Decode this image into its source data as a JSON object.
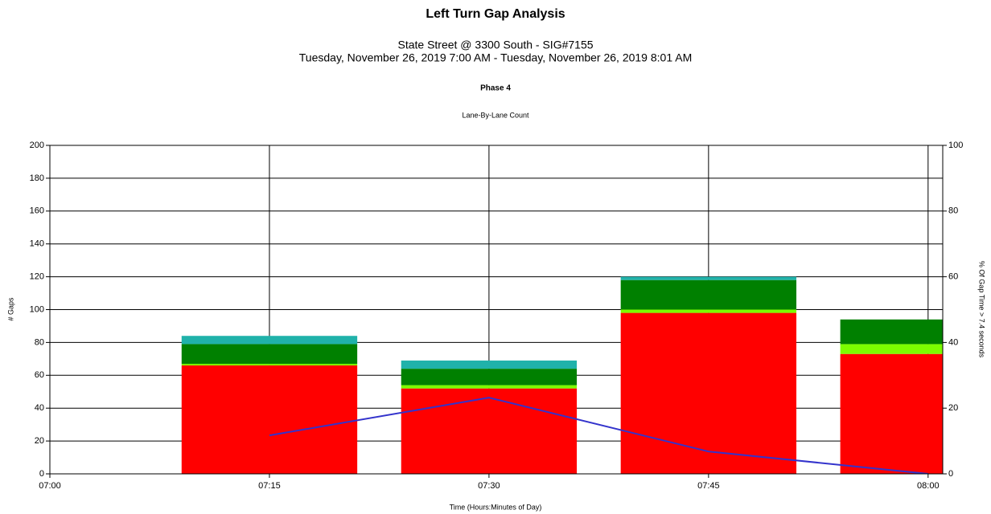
{
  "chart_data": {
    "type": "bar",
    "stacked": true,
    "title": "Left Turn Gap Analysis",
    "subtitle": [
      "State Street @ 3300 South - SIG#7155",
      "Tuesday, November 26, 2019 7:00 AM - Tuesday, November 26, 2019 8:01 AM"
    ],
    "phase": "Phase 4",
    "caption": "Lane-By-Lane Count",
    "x_label": "Time (Hours:Minutes of Day)",
    "y_label": "# Gaps",
    "y2_label": "% Of Gap Time > 7.4 seconds",
    "x": [
      "07:15",
      "07:30",
      "07:45",
      "08:00"
    ],
    "bar_width_minutes": 12,
    "series": [
      {
        "type": "bar",
        "color": "#ff0000",
        "values": [
          66,
          52,
          98,
          73
        ]
      },
      {
        "type": "bar",
        "color": "#7cfc00",
        "values": [
          1,
          2,
          2,
          6
        ]
      },
      {
        "type": "bar",
        "color": "#008000",
        "values": [
          12,
          10,
          18,
          15
        ]
      },
      {
        "type": "bar",
        "color": "#20b2aa",
        "values": [
          5,
          5,
          2,
          0
        ]
      },
      {
        "type": "line",
        "axis": "y2",
        "color": "#3333cc",
        "values": [
          11.7,
          23.2,
          6.8,
          0
        ]
      }
    ],
    "xlim": [
      "07:00",
      "08:01"
    ],
    "xticks": [
      "07:00",
      "07:15",
      "07:30",
      "07:45",
      "08:00"
    ],
    "ylim": [
      0,
      200
    ],
    "yticks": [
      0,
      20,
      40,
      60,
      80,
      100,
      120,
      140,
      160,
      180,
      200
    ],
    "y2lim": [
      0,
      100
    ],
    "y2ticks": [
      0,
      20,
      40,
      60,
      80,
      100
    ],
    "grid": true
  }
}
